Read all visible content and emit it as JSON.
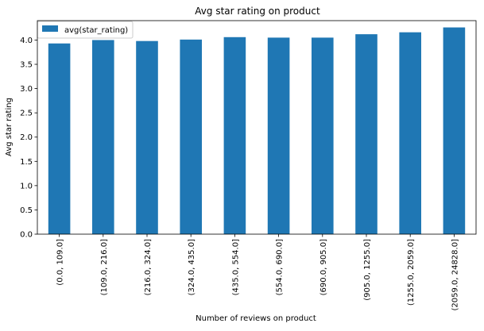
{
  "chart_data": {
    "type": "bar",
    "title": "Avg star rating on product",
    "xlabel": "Number of reviews on product",
    "ylabel": "Avg star rating",
    "categories": [
      "(0.0, 109.0]",
      "(109.0, 216.0]",
      "(216.0, 324.0]",
      "(324.0, 435.0]",
      "(435.0, 554.0]",
      "(554.0, 690.0]",
      "(690.0, 905.0]",
      "(905.0, 1255.0]",
      "(1255.0, 2059.0]",
      "(2059.0, 24828.0]"
    ],
    "series": [
      {
        "name": "avg(star_rating)",
        "color": "#1f77b4",
        "values": [
          3.93,
          4.0,
          3.98,
          4.01,
          4.06,
          4.05,
          4.05,
          4.12,
          4.16,
          4.26
        ]
      }
    ],
    "ylim": [
      0,
      4.4
    ],
    "yticks": [
      0.0,
      0.5,
      1.0,
      1.5,
      2.0,
      2.5,
      3.0,
      3.5,
      4.0
    ],
    "ytick_labels": [
      "0.0",
      "0.5",
      "1.0",
      "1.5",
      "2.0",
      "2.5",
      "3.0",
      "3.5",
      "4.0"
    ],
    "grid": false,
    "legend_position": "top-left"
  }
}
